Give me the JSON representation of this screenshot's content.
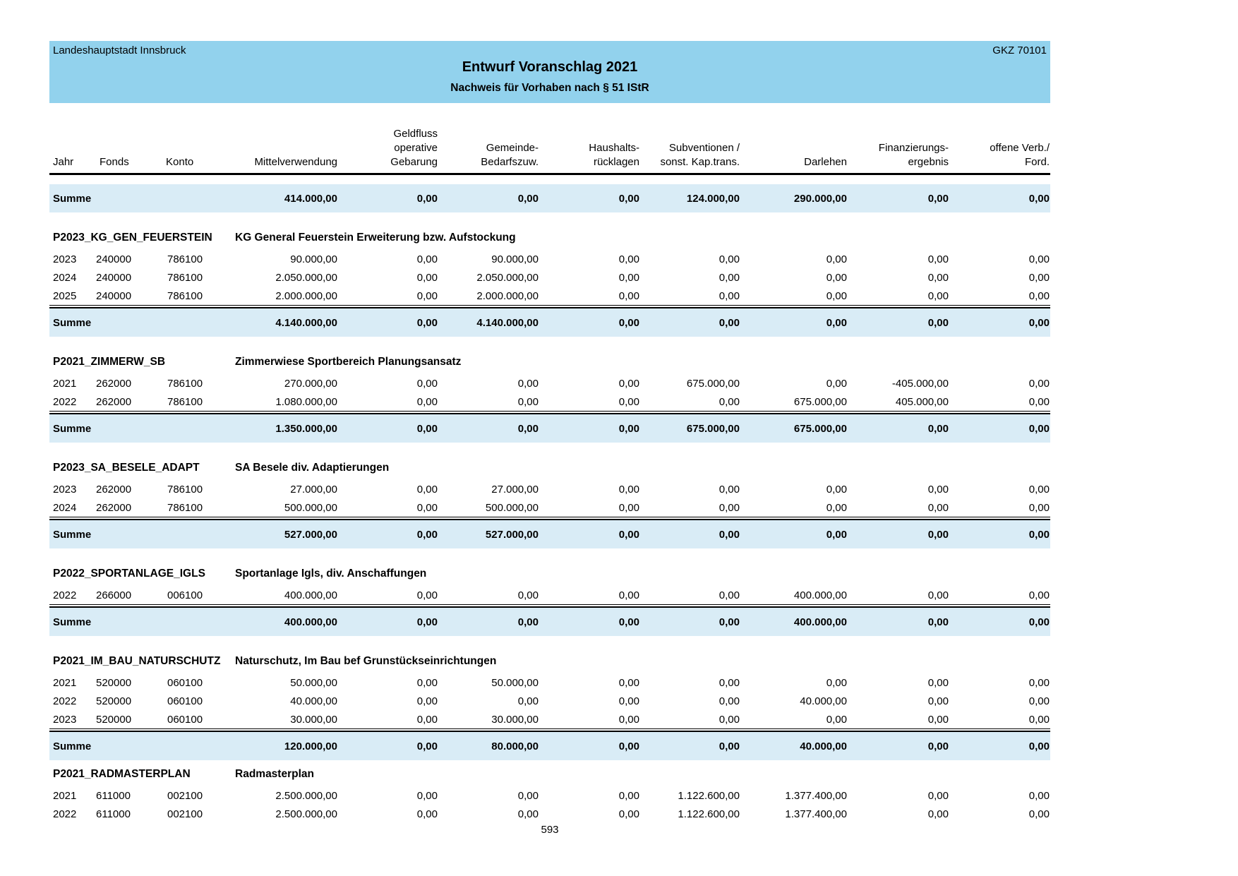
{
  "header": {
    "org": "Landeshauptstadt Innsbruck",
    "gkz": "GKZ 70101",
    "title": "Entwurf Voranschlag 2021",
    "subtitle": "Nachweis für Vorhaben nach § 51 IStR"
  },
  "columns": [
    {
      "label": "Jahr",
      "align": "left"
    },
    {
      "label": "Fonds",
      "align": "left"
    },
    {
      "label": "Konto",
      "align": "left"
    },
    {
      "label": "Mittelverwendung",
      "align": "right"
    },
    {
      "label": "Geldfluss\noperative\nGebarung",
      "align": "right"
    },
    {
      "label": "Gemeinde-\nBedarfszuw.",
      "align": "right"
    },
    {
      "label": "Haushalts-\nrücklagen",
      "align": "right"
    },
    {
      "label": "Subventionen /\nsonst. Kap.trans.",
      "align": "right"
    },
    {
      "label": "Darlehen",
      "align": "right"
    },
    {
      "label": "Finanzierungs-\nergebnis",
      "align": "right"
    },
    {
      "label": "offene Verb./\nFord.",
      "align": "right"
    }
  ],
  "grand_summe": {
    "label": "Summe",
    "values": [
      "414.000,00",
      "0,00",
      "0,00",
      "0,00",
      "124.000,00",
      "290.000,00",
      "0,00",
      "0,00"
    ]
  },
  "sections": [
    {
      "code": "P2023_KG_GEN_FEUERSTEIN",
      "title": "KG General Feuerstein Erweiterung bzw. Aufstockung",
      "rows": [
        {
          "jahr": "2023",
          "fonds": "240000",
          "konto": "786100",
          "values": [
            "90.000,00",
            "0,00",
            "90.000,00",
            "0,00",
            "0,00",
            "0,00",
            "0,00",
            "0,00"
          ]
        },
        {
          "jahr": "2024",
          "fonds": "240000",
          "konto": "786100",
          "values": [
            "2.050.000,00",
            "0,00",
            "2.050.000,00",
            "0,00",
            "0,00",
            "0,00",
            "0,00",
            "0,00"
          ]
        },
        {
          "jahr": "2025",
          "fonds": "240000",
          "konto": "786100",
          "values": [
            "2.000.000,00",
            "0,00",
            "2.000.000,00",
            "0,00",
            "0,00",
            "0,00",
            "0,00",
            "0,00"
          ]
        }
      ],
      "summe": {
        "label": "Summe",
        "values": [
          "4.140.000,00",
          "0,00",
          "4.140.000,00",
          "0,00",
          "0,00",
          "0,00",
          "0,00",
          "0,00"
        ]
      }
    },
    {
      "code": "P2021_ZIMMERW_SB",
      "title": "Zimmerwiese Sportbereich Planungsansatz",
      "rows": [
        {
          "jahr": "2021",
          "fonds": "262000",
          "konto": "786100",
          "values": [
            "270.000,00",
            "0,00",
            "0,00",
            "0,00",
            "675.000,00",
            "0,00",
            "-405.000,00",
            "0,00"
          ]
        },
        {
          "jahr": "2022",
          "fonds": "262000",
          "konto": "786100",
          "values": [
            "1.080.000,00",
            "0,00",
            "0,00",
            "0,00",
            "0,00",
            "675.000,00",
            "405.000,00",
            "0,00"
          ]
        }
      ],
      "summe": {
        "label": "Summe",
        "values": [
          "1.350.000,00",
          "0,00",
          "0,00",
          "0,00",
          "675.000,00",
          "675.000,00",
          "0,00",
          "0,00"
        ]
      }
    },
    {
      "code": "P2023_SA_BESELE_ADAPT",
      "title": "SA Besele div. Adaptierungen",
      "rows": [
        {
          "jahr": "2023",
          "fonds": "262000",
          "konto": "786100",
          "values": [
            "27.000,00",
            "0,00",
            "27.000,00",
            "0,00",
            "0,00",
            "0,00",
            "0,00",
            "0,00"
          ]
        },
        {
          "jahr": "2024",
          "fonds": "262000",
          "konto": "786100",
          "values": [
            "500.000,00",
            "0,00",
            "500.000,00",
            "0,00",
            "0,00",
            "0,00",
            "0,00",
            "0,00"
          ]
        }
      ],
      "summe": {
        "label": "Summe",
        "values": [
          "527.000,00",
          "0,00",
          "527.000,00",
          "0,00",
          "0,00",
          "0,00",
          "0,00",
          "0,00"
        ]
      }
    },
    {
      "code": "P2022_SPORTANLAGE_IGLS",
      "title": "Sportanlage Igls, div. Anschaffungen",
      "rows": [
        {
          "jahr": "2022",
          "fonds": "266000",
          "konto": "006100",
          "values": [
            "400.000,00",
            "0,00",
            "0,00",
            "0,00",
            "0,00",
            "400.000,00",
            "0,00",
            "0,00"
          ]
        }
      ],
      "summe": {
        "label": "Summe",
        "values": [
          "400.000,00",
          "0,00",
          "0,00",
          "0,00",
          "0,00",
          "400.000,00",
          "0,00",
          "0,00"
        ]
      }
    },
    {
      "code": "P2021_IM_BAU_NATURSCHUTZ",
      "title": "Naturschutz, Im Bau bef Grunstückseinrichtungen",
      "rows": [
        {
          "jahr": "2021",
          "fonds": "520000",
          "konto": "060100",
          "values": [
            "50.000,00",
            "0,00",
            "50.000,00",
            "0,00",
            "0,00",
            "0,00",
            "0,00",
            "0,00"
          ]
        },
        {
          "jahr": "2022",
          "fonds": "520000",
          "konto": "060100",
          "values": [
            "40.000,00",
            "0,00",
            "0,00",
            "0,00",
            "0,00",
            "40.000,00",
            "0,00",
            "0,00"
          ]
        },
        {
          "jahr": "2023",
          "fonds": "520000",
          "konto": "060100",
          "values": [
            "30.000,00",
            "0,00",
            "30.000,00",
            "0,00",
            "0,00",
            "0,00",
            "0,00",
            "0,00"
          ]
        }
      ],
      "summe": {
        "label": "Summe",
        "values": [
          "120.000,00",
          "0,00",
          "80.000,00",
          "0,00",
          "0,00",
          "40.000,00",
          "0,00",
          "0,00"
        ]
      }
    },
    {
      "code": "P2021_RADMASTERPLAN",
      "title": "Radmasterplan",
      "tight": true,
      "rows": [
        {
          "jahr": "2021",
          "fonds": "611000",
          "konto": "002100",
          "values": [
            "2.500.000,00",
            "0,00",
            "0,00",
            "0,00",
            "1.122.600,00",
            "1.377.400,00",
            "0,00",
            "0,00"
          ]
        },
        {
          "jahr": "2022",
          "fonds": "611000",
          "konto": "002100",
          "values": [
            "2.500.000,00",
            "0,00",
            "0,00",
            "0,00",
            "1.122.600,00",
            "1.377.400,00",
            "0,00",
            "0,00"
          ]
        }
      ],
      "summe": null
    }
  ],
  "page_number": "593",
  "colors": {
    "header_band": "#92d2ed",
    "summe_row": "#d9ecf6"
  }
}
